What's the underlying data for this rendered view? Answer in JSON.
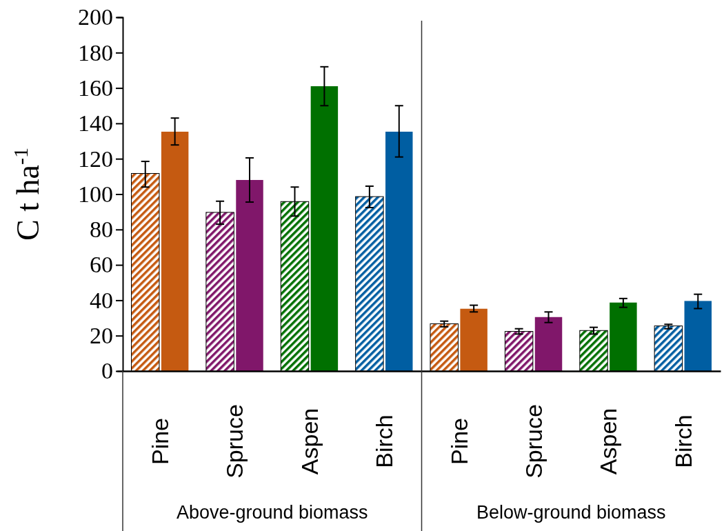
{
  "chart_data": {
    "type": "bar",
    "ylabel": "C t ha$^{-1}$",
    "categories": [
      "Pine",
      "Spruce",
      "Aspen",
      "Birch",
      "Pine",
      "Spruce",
      "Aspen",
      "Birch"
    ],
    "series": [
      {
        "colors": [
          "#c55a11",
          "#80176a",
          "#007000",
          "#005ea2",
          "#c55a11",
          "#80176a",
          "#007000",
          "#005ea2"
        ],
        "values": [
          111.5,
          89.5,
          95.6,
          98.4,
          26.5,
          22.2,
          22.7,
          25.3
        ],
        "errors": [
          [
            104,
            118.5
          ],
          [
            83,
            96
          ],
          [
            87.6,
            104
          ],
          [
            92.4,
            104.5
          ],
          [
            25,
            28.2
          ],
          [
            20.9,
            23.9
          ],
          [
            20.9,
            24.7
          ],
          [
            23.9,
            26.4
          ]
        ]
      },
      {
        "colors": [
          "#c55a11",
          "#80176a",
          "#007000",
          "#005ea2",
          "#c55a11",
          "#80176a",
          "#007000",
          "#005ea2"
        ],
        "values": [
          135.3,
          108,
          161,
          135.3,
          35.2,
          30.5,
          38.7,
          39.6
        ],
        "errors": [
          [
            127.8,
            143
          ],
          [
            95.5,
            120.5
          ],
          [
            150,
            172
          ],
          [
            121,
            150
          ],
          [
            33.4,
            37.2
          ],
          [
            27.4,
            33.4
          ],
          [
            36,
            41
          ],
          [
            35.3,
            43.4
          ]
        ]
      }
    ],
    "ylim": [
      0,
      200
    ],
    "yticks": [
      0,
      20,
      40,
      60,
      80,
      100,
      120,
      140,
      160,
      180,
      200
    ],
    "grid": false,
    "annotations": [
      "Above-ground biomass",
      "Below-ground biomass"
    ]
  }
}
